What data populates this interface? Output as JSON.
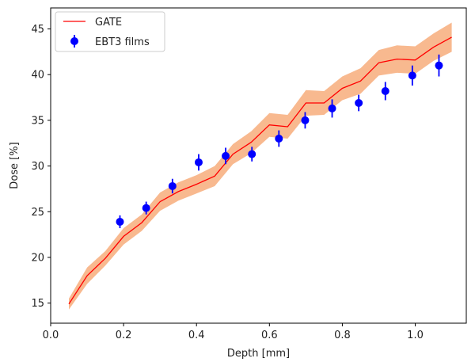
{
  "chart_data": {
    "type": "line",
    "xlabel": "Depth [mm]",
    "ylabel": "Dose [%]",
    "xlim": [
      0.0,
      1.14
    ],
    "ylim": [
      12.8,
      47.3
    ],
    "xticks": [
      0.0,
      0.2,
      0.4,
      0.6,
      0.8,
      1.0
    ],
    "xtick_labels": [
      "0.0",
      "0.2",
      "0.4",
      "0.6",
      "0.8",
      "1.0"
    ],
    "yticks": [
      15,
      20,
      25,
      30,
      35,
      40,
      45
    ],
    "ytick_labels": [
      "15",
      "20",
      "25",
      "30",
      "35",
      "40",
      "45"
    ],
    "legend_position": "top-left",
    "series": [
      {
        "name": "GATE",
        "kind": "line",
        "color": "#ff0000",
        "band_color": "#f8b98f",
        "x": [
          0.05,
          0.1,
          0.15,
          0.2,
          0.25,
          0.3,
          0.35,
          0.4,
          0.45,
          0.5,
          0.55,
          0.6,
          0.65,
          0.7,
          0.75,
          0.8,
          0.85,
          0.9,
          0.95,
          1.0,
          1.05,
          1.1
        ],
        "y": [
          14.9,
          18.0,
          19.9,
          22.3,
          23.8,
          26.1,
          27.2,
          28.0,
          28.9,
          31.3,
          32.6,
          34.5,
          34.3,
          36.9,
          36.9,
          38.5,
          39.3,
          41.3,
          41.7,
          41.6,
          43.0,
          44.1
        ],
        "y_lower": [
          14.3,
          17.1,
          19.1,
          21.4,
          22.9,
          25.1,
          26.2,
          27.0,
          27.8,
          30.2,
          31.4,
          33.2,
          33.0,
          35.5,
          35.6,
          37.2,
          37.9,
          39.9,
          40.2,
          40.1,
          41.5,
          42.5
        ],
        "y_upper": [
          15.5,
          18.9,
          20.7,
          23.2,
          24.7,
          27.1,
          28.2,
          29.0,
          30.0,
          32.4,
          33.8,
          35.8,
          35.6,
          38.3,
          38.2,
          39.8,
          40.7,
          42.7,
          43.2,
          43.1,
          44.5,
          45.7
        ]
      },
      {
        "name": "EBT3 films",
        "kind": "errorbar",
        "color": "#0000ff",
        "x": [
          0.19,
          0.262,
          0.334,
          0.406,
          0.48,
          0.552,
          0.626,
          0.698,
          0.772,
          0.845,
          0.918,
          0.992,
          1.065
        ],
        "y": [
          23.9,
          25.4,
          27.8,
          30.4,
          31.1,
          31.3,
          33.0,
          35.0,
          36.3,
          36.9,
          38.2,
          39.9,
          41.0
        ],
        "yerr": [
          0.7,
          0.7,
          0.8,
          0.9,
          0.9,
          0.8,
          0.9,
          0.9,
          1.0,
          0.9,
          1.0,
          1.1,
          1.2
        ]
      }
    ]
  }
}
